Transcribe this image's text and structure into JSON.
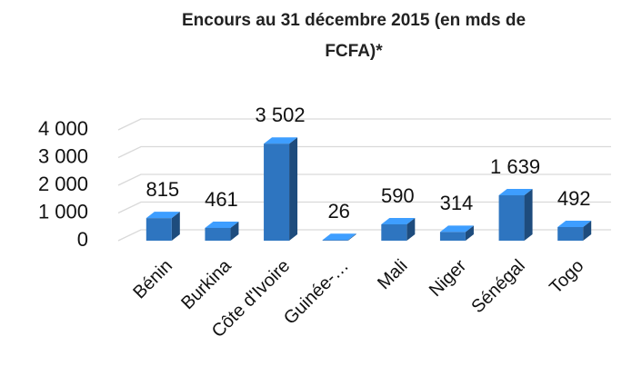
{
  "chart_data": {
    "type": "bar3d",
    "title": "Encours au 31 décembre 2015 (en mds de FCFA)*",
    "categories": [
      "Bénin",
      "Burkina",
      "Côte d'Ivoire",
      "Guinée-…",
      "Mali",
      "Niger",
      "Sénégal",
      "Togo"
    ],
    "values": [
      815,
      461,
      3502,
      26,
      590,
      314,
      1639,
      492
    ],
    "value_labels": [
      "815",
      "461",
      "3 502",
      "26",
      "590",
      "314",
      "1 639",
      "492"
    ],
    "color": "#2e75c0",
    "ylim": [
      0,
      4000
    ],
    "yticks": [
      0,
      {
        "value": 1000,
        "label": "1 000"
      },
      {
        "value": 2000,
        "label": "2 000"
      },
      {
        "value": 3000,
        "label": "3 000"
      },
      {
        "value": 4000,
        "label": "4 000"
      }
    ],
    "grid": true
  }
}
